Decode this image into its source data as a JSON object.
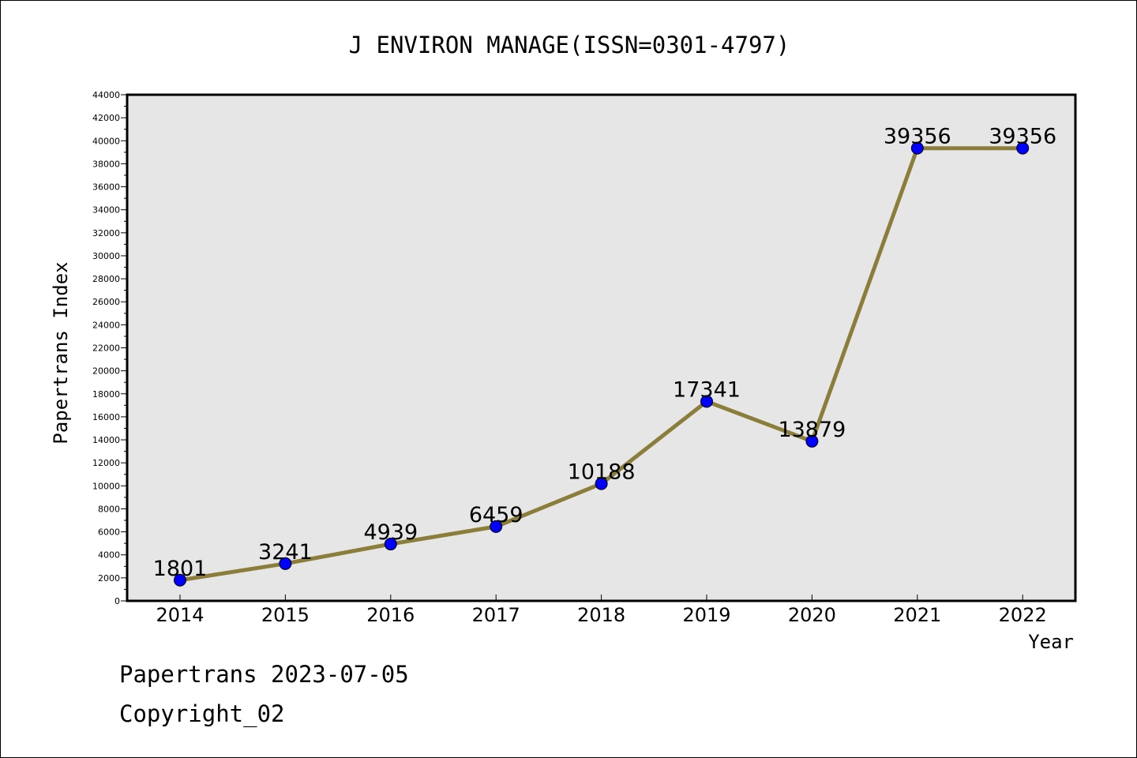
{
  "chart_data": {
    "type": "line",
    "title": "J ENVIRON MANAGE(ISSN=0301-4797)",
    "xlabel": "Year",
    "ylabel": "Papertrans Index",
    "categories": [
      "2014",
      "2015",
      "2016",
      "2017",
      "2018",
      "2019",
      "2020",
      "2021",
      "2022"
    ],
    "values": [
      1801,
      3241,
      4939,
      6459,
      10188,
      17341,
      13879,
      39356,
      39356
    ],
    "ylim": [
      0,
      44000
    ],
    "yticks": [
      0,
      2000,
      4000,
      6000,
      8000,
      10000,
      12000,
      14000,
      16000,
      18000,
      20000,
      22000,
      24000,
      26000,
      28000,
      30000,
      32000,
      34000,
      36000,
      38000,
      40000,
      42000,
      44000
    ],
    "grid": false,
    "colors": {
      "line": "#8b7d3a",
      "marker": "#0000ff",
      "plot_background": "#e6e6e6"
    }
  },
  "footer": {
    "line1": "Papertrans 2023-07-05",
    "line2": "Copyright_02"
  }
}
